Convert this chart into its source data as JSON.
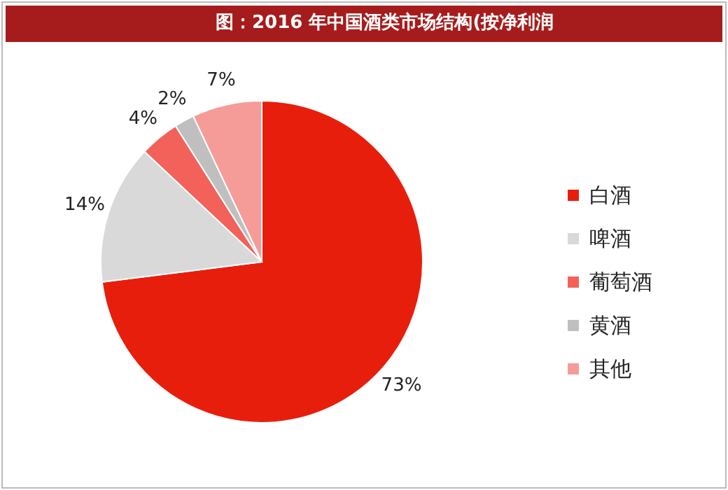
{
  "chart_data": {
    "type": "pie",
    "title": "图：2016 年中国酒类市场结构(按净利润",
    "categories": [
      "白酒",
      "啤酒",
      "葡萄酒",
      "黄酒",
      "其他"
    ],
    "values": [
      73,
      14,
      4,
      2,
      7
    ],
    "colors": [
      "#e81e0c",
      "#d9d9d9",
      "#f2625a",
      "#bfbfbf",
      "#f59c98"
    ],
    "value_labels": [
      "73%",
      "14%",
      "4%",
      "2%",
      "7%"
    ],
    "legend": "right"
  }
}
